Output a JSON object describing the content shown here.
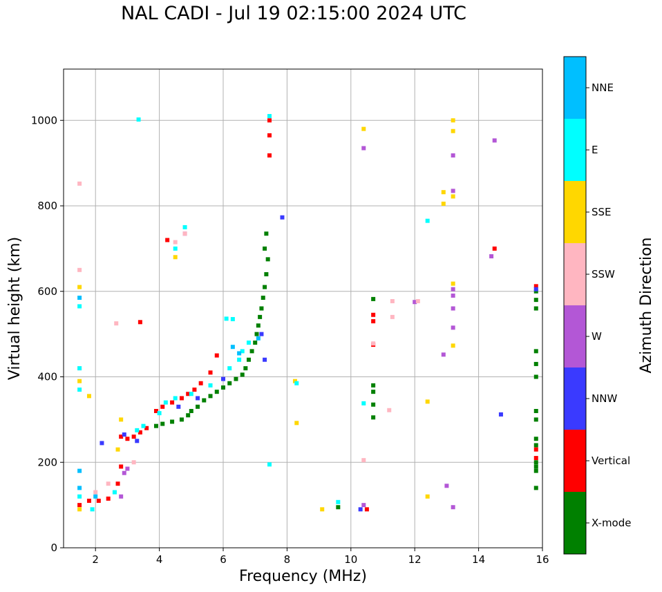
{
  "title": "NAL CADI - Jul 19 02:15:00 2024 UTC",
  "chart_data": {
    "type": "scatter",
    "title": "NAL CADI - Jul 19 02:15:00 2024 UTC",
    "xlabel": "Frequency (MHz)",
    "ylabel": "Virtual height (km)",
    "xlim": [
      1,
      16
    ],
    "ylim": [
      0,
      1120
    ],
    "xticks": [
      2,
      4,
      6,
      8,
      10,
      12,
      14,
      16
    ],
    "yticks": [
      0,
      200,
      400,
      600,
      800,
      1000
    ],
    "grid": true,
    "colorbar": {
      "label": "Azimuth Direction",
      "categories": [
        "X-mode",
        "Vertical",
        "NNW",
        "W",
        "SSW",
        "SSE",
        "E",
        "NNE"
      ],
      "colors": [
        "#008000",
        "#ff0000",
        "#3a3aff",
        "#b357d6",
        "#ffb6c1",
        "#ffd700",
        "#00ffff",
        "#00bfff"
      ]
    },
    "series": [
      {
        "name": "X-mode",
        "points": [
          [
            3.9,
            285
          ],
          [
            4.1,
            290
          ],
          [
            4.4,
            295
          ],
          [
            4.7,
            300
          ],
          [
            4.9,
            310
          ],
          [
            5.0,
            320
          ],
          [
            5.2,
            330
          ],
          [
            5.4,
            345
          ],
          [
            5.6,
            355
          ],
          [
            5.8,
            365
          ],
          [
            6.0,
            375
          ],
          [
            6.2,
            385
          ],
          [
            6.4,
            395
          ],
          [
            6.6,
            405
          ],
          [
            6.7,
            420
          ],
          [
            6.8,
            440
          ],
          [
            6.9,
            460
          ],
          [
            7.0,
            480
          ],
          [
            7.05,
            500
          ],
          [
            7.1,
            520
          ],
          [
            7.15,
            540
          ],
          [
            7.2,
            560
          ],
          [
            7.25,
            585
          ],
          [
            7.3,
            610
          ],
          [
            7.35,
            640
          ],
          [
            7.4,
            675
          ],
          [
            7.3,
            700
          ],
          [
            7.35,
            735
          ],
          [
            9.6,
            95
          ],
          [
            10.7,
            305
          ],
          [
            10.7,
            335
          ],
          [
            10.7,
            365
          ],
          [
            10.7,
            380
          ],
          [
            10.7,
            582
          ],
          [
            15.8,
            140
          ],
          [
            15.8,
            180
          ],
          [
            15.8,
            190
          ],
          [
            15.8,
            200
          ],
          [
            15.8,
            240
          ],
          [
            15.8,
            255
          ],
          [
            15.8,
            300
          ],
          [
            15.8,
            320
          ],
          [
            15.8,
            400
          ],
          [
            15.8,
            430
          ],
          [
            15.8,
            460
          ],
          [
            15.8,
            560
          ],
          [
            15.8,
            580
          ],
          [
            15.8,
            600
          ]
        ]
      },
      {
        "name": "Vertical",
        "points": [
          [
            1.5,
            100
          ],
          [
            1.8,
            110
          ],
          [
            2.1,
            110
          ],
          [
            2.4,
            115
          ],
          [
            2.7,
            150
          ],
          [
            2.8,
            190
          ],
          [
            2.8,
            260
          ],
          [
            3.0,
            255
          ],
          [
            3.2,
            260
          ],
          [
            3.4,
            270
          ],
          [
            3.6,
            280
          ],
          [
            3.9,
            320
          ],
          [
            4.1,
            330
          ],
          [
            4.4,
            340
          ],
          [
            4.7,
            350
          ],
          [
            4.9,
            360
          ],
          [
            5.1,
            370
          ],
          [
            5.3,
            385
          ],
          [
            5.6,
            410
          ],
          [
            5.8,
            450
          ],
          [
            3.4,
            528
          ],
          [
            4.25,
            720
          ],
          [
            7.45,
            918
          ],
          [
            7.45,
            965
          ],
          [
            7.45,
            1000
          ],
          [
            10.5,
            90
          ],
          [
            10.7,
            475
          ],
          [
            10.7,
            530
          ],
          [
            10.7,
            545
          ],
          [
            14.5,
            700
          ],
          [
            15.8,
            210
          ],
          [
            15.8,
            230
          ],
          [
            15.8,
            612
          ]
        ]
      },
      {
        "name": "NNW",
        "points": [
          [
            2.2,
            245
          ],
          [
            2.9,
            265
          ],
          [
            3.3,
            250
          ],
          [
            4.6,
            330
          ],
          [
            5.2,
            350
          ],
          [
            6.0,
            395
          ],
          [
            7.2,
            500
          ],
          [
            7.3,
            440
          ],
          [
            7.85,
            773
          ],
          [
            10.3,
            90
          ],
          [
            14.7,
            312
          ],
          [
            15.8,
            605
          ]
        ]
      },
      {
        "name": "W",
        "points": [
          [
            2.9,
            175
          ],
          [
            3.0,
            185
          ],
          [
            2.8,
            120
          ],
          [
            4.8,
            735
          ],
          [
            10.4,
            100
          ],
          [
            10.4,
            935
          ],
          [
            12.0,
            575
          ],
          [
            12.9,
            452
          ],
          [
            13.0,
            145
          ],
          [
            13.2,
            95
          ],
          [
            13.2,
            515
          ],
          [
            13.2,
            560
          ],
          [
            13.2,
            590
          ],
          [
            13.2,
            605
          ],
          [
            13.2,
            835
          ],
          [
            13.2,
            918
          ],
          [
            14.4,
            682
          ],
          [
            14.5,
            953
          ]
        ]
      },
      {
        "name": "SSW",
        "points": [
          [
            1.5,
            650
          ],
          [
            1.5,
            420
          ],
          [
            1.5,
            852
          ],
          [
            2.0,
            130
          ],
          [
            2.4,
            150
          ],
          [
            2.6,
            130
          ],
          [
            2.65,
            525
          ],
          [
            3.2,
            200
          ],
          [
            4.5,
            715
          ],
          [
            4.8,
            735
          ],
          [
            10.4,
            205
          ],
          [
            10.7,
            478
          ],
          [
            11.2,
            322
          ],
          [
            11.3,
            540
          ],
          [
            11.3,
            577
          ],
          [
            12.1,
            577
          ]
        ]
      },
      {
        "name": "SSE",
        "points": [
          [
            1.5,
            90
          ],
          [
            1.5,
            610
          ],
          [
            1.5,
            390
          ],
          [
            1.8,
            355
          ],
          [
            2.7,
            230
          ],
          [
            2.8,
            300
          ],
          [
            4.5,
            680
          ],
          [
            8.25,
            390
          ],
          [
            8.3,
            292
          ],
          [
            9.1,
            90
          ],
          [
            10.4,
            980
          ],
          [
            12.4,
            342
          ],
          [
            12.4,
            120
          ],
          [
            12.9,
            805
          ],
          [
            12.9,
            832
          ],
          [
            13.2,
            473
          ],
          [
            13.2,
            618
          ],
          [
            13.2,
            822
          ],
          [
            13.2,
            975
          ],
          [
            13.2,
            1000
          ]
        ]
      },
      {
        "name": "E",
        "points": [
          [
            1.5,
            120
          ],
          [
            1.5,
            420
          ],
          [
            1.5,
            370
          ],
          [
            1.5,
            565
          ],
          [
            1.9,
            90
          ],
          [
            2.6,
            130
          ],
          [
            3.3,
            275
          ],
          [
            3.5,
            285
          ],
          [
            4.0,
            315
          ],
          [
            4.2,
            340
          ],
          [
            4.5,
            350
          ],
          [
            5.0,
            360
          ],
          [
            5.6,
            380
          ],
          [
            6.2,
            420
          ],
          [
            6.5,
            440
          ],
          [
            6.6,
            460
          ],
          [
            6.8,
            480
          ],
          [
            6.1,
            536
          ],
          [
            6.3,
            535
          ],
          [
            3.35,
            1002
          ],
          [
            4.8,
            750
          ],
          [
            4.5,
            700
          ],
          [
            7.45,
            195
          ],
          [
            7.45,
            1010
          ],
          [
            8.3,
            385
          ],
          [
            9.6,
            107
          ],
          [
            10.4,
            338
          ],
          [
            12.4,
            765
          ]
        ]
      },
      {
        "name": "NNE",
        "points": [
          [
            1.5,
            140
          ],
          [
            1.5,
            180
          ],
          [
            1.5,
            585
          ],
          [
            2.0,
            120
          ],
          [
            7.1,
            490
          ],
          [
            6.3,
            470
          ],
          [
            6.5,
            455
          ]
        ]
      }
    ]
  }
}
